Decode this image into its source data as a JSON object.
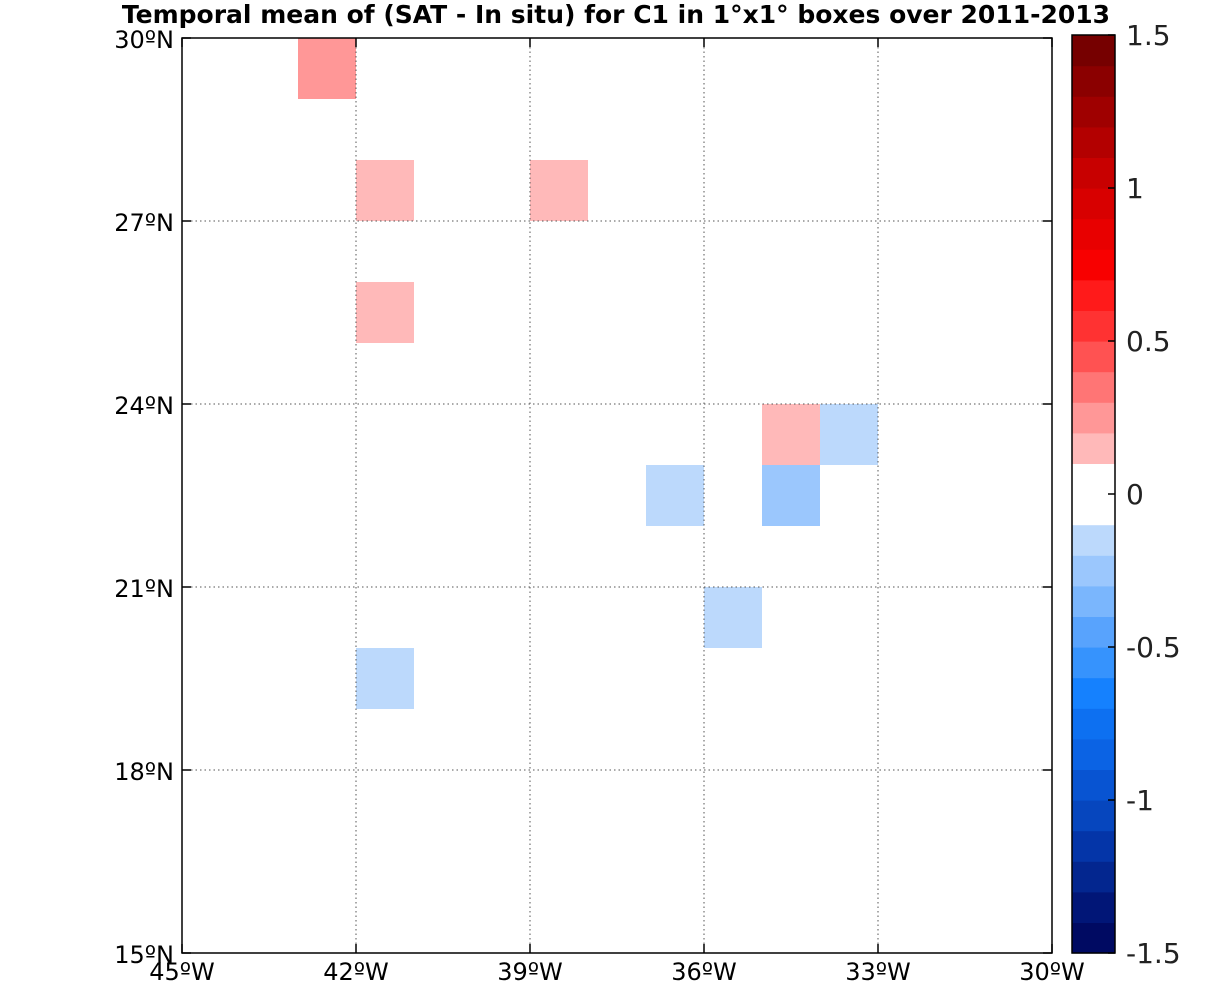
{
  "chart_data": {
    "type": "heatmap",
    "title": "Temporal mean of (SAT - In situ) for C1 in 1°x1° boxes over 2011-2013",
    "xlim": [
      -45,
      -30
    ],
    "ylim": [
      15,
      30
    ],
    "x_ticks": [
      {
        "value": -45,
        "label": "45ºW"
      },
      {
        "value": -42,
        "label": "42ºW"
      },
      {
        "value": -39,
        "label": "39ºW"
      },
      {
        "value": -36,
        "label": "36ºW"
      },
      {
        "value": -33,
        "label": "33ºW"
      },
      {
        "value": -30,
        "label": "30ºW"
      }
    ],
    "y_ticks": [
      {
        "value": 30,
        "label": "30ºN"
      },
      {
        "value": 27,
        "label": "27ºN"
      },
      {
        "value": 24,
        "label": "24ºN"
      },
      {
        "value": 21,
        "label": "21ºN"
      },
      {
        "value": 18,
        "label": "18ºN"
      },
      {
        "value": 15,
        "label": "15ºN"
      }
    ],
    "grid": true,
    "colorbar": {
      "range": [
        -1.5,
        1.5
      ],
      "step": 0.1,
      "ticks": [
        {
          "value": 1.5,
          "label": "1.5"
        },
        {
          "value": 1,
          "label": "1"
        },
        {
          "value": 0.5,
          "label": "0.5"
        },
        {
          "value": 0,
          "label": "0"
        },
        {
          "value": -0.5,
          "label": "-0.5"
        },
        {
          "value": -1,
          "label": "-1"
        },
        {
          "value": -1.5,
          "label": "-1.5"
        }
      ],
      "placement": "right"
    },
    "cells": [
      {
        "lon": -43,
        "lat": 29,
        "value": 0.25
      },
      {
        "lon": -36,
        "lat": 28,
        "value": -0.05
      },
      {
        "lon": -42,
        "lat": 27,
        "value": 0.15
      },
      {
        "lon": -41,
        "lat": 27,
        "value": -0.05
      },
      {
        "lon": -39,
        "lat": 27,
        "value": 0.15
      },
      {
        "lon": -42,
        "lat": 25,
        "value": 0.15
      },
      {
        "lon": -39,
        "lat": 25,
        "value": -0.05
      },
      {
        "lon": -35,
        "lat": 25,
        "value": -0.05
      },
      {
        "lon": -33,
        "lat": 24,
        "value": -0.05
      },
      {
        "lon": -39,
        "lat": 23,
        "value": -0.05
      },
      {
        "lon": -38,
        "lat": 23,
        "value": -0.05
      },
      {
        "lon": -35,
        "lat": 23,
        "value": 0.15
      },
      {
        "lon": -34,
        "lat": 23,
        "value": -0.15
      },
      {
        "lon": -33,
        "lat": 23,
        "value": -0.05
      },
      {
        "lon": -37,
        "lat": 22,
        "value": -0.15
      },
      {
        "lon": -35,
        "lat": 22,
        "value": -0.25
      },
      {
        "lon": -36,
        "lat": 20,
        "value": -0.15
      },
      {
        "lon": -42,
        "lat": 19,
        "value": -0.15
      }
    ]
  }
}
